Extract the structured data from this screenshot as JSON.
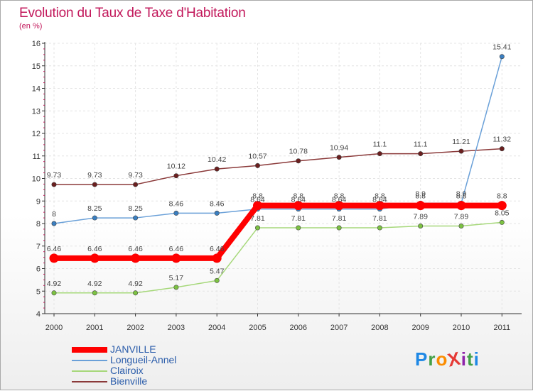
{
  "header": {
    "title": "Evolution du Taux de Taxe d'Habitation",
    "subtitle": "(en %)"
  },
  "logo": {
    "text": "ProXiti",
    "letters": [
      "P",
      "r",
      "o",
      "X",
      "i",
      "t",
      "i"
    ],
    "colors": [
      "#1e88e5",
      "#43a047",
      "#fb8c00",
      "#e53935",
      "#8e24aa",
      "#43a047",
      "#1e88e5"
    ]
  },
  "chart_data": {
    "type": "line",
    "title": "Evolution du Taux de Taxe d'Habitation",
    "ylabel": "(en %)",
    "xlabel": "",
    "x": [
      "2000",
      "2001",
      "2002",
      "2003",
      "2004",
      "2005",
      "2006",
      "2007",
      "2008",
      "2009",
      "2010",
      "2011"
    ],
    "ylim": [
      4,
      16
    ],
    "yticks": [
      4,
      5,
      6,
      7,
      8,
      9,
      10,
      11,
      12,
      13,
      14,
      15,
      16
    ],
    "grid": true,
    "legend": "bottom-left",
    "series": [
      {
        "name": "JANVILLE",
        "color": "#ff0000",
        "values": [
          6.46,
          6.46,
          6.46,
          6.46,
          6.46,
          8.8,
          8.8,
          8.8,
          8.8,
          8.8,
          8.8,
          8.8
        ],
        "labels": [
          "6.46",
          "6.46",
          "6.46",
          "6.46",
          "6.46",
          "8.8",
          "8.8",
          "8.8",
          "8.8",
          "8.8",
          "8.8",
          "8.8"
        ]
      },
      {
        "name": "Longueil-Annel",
        "color": "#6aa0d8",
        "marker": "#3a7fc1",
        "values": [
          8,
          8.25,
          8.25,
          8.46,
          8.46,
          8.64,
          8.64,
          8.64,
          8.64,
          8.9,
          8.9,
          15.41
        ],
        "labels": [
          "8",
          "8.25",
          "8.25",
          "8.46",
          "8.46",
          "8.64",
          "8.64",
          "8.64",
          "8.64",
          "8.9",
          "8.9",
          "15.41"
        ]
      },
      {
        "name": "Clairoix",
        "color": "#a6d87a",
        "marker": "#7cc242",
        "values": [
          4.92,
          4.92,
          4.92,
          5.17,
          5.47,
          7.81,
          7.81,
          7.81,
          7.81,
          7.89,
          7.89,
          8.05
        ],
        "labels": [
          "4.92",
          "4.92",
          "4.92",
          "5.17",
          "5.47",
          "7.81",
          "7.81",
          "7.81",
          "7.81",
          "7.89",
          "7.89",
          "8.05"
        ]
      },
      {
        "name": "Bienville",
        "color": "#8b3a3a",
        "marker": "#6b1f1f",
        "values": [
          9.73,
          9.73,
          9.73,
          10.12,
          10.42,
          10.57,
          10.78,
          10.94,
          11.1,
          11.1,
          11.21,
          11.32
        ],
        "labels": [
          "9.73",
          "9.73",
          "9.73",
          "10.12",
          "10.42",
          "10.57",
          "10.78",
          "10.94",
          "11.1",
          "11.1",
          "11.21",
          "11.32"
        ]
      }
    ]
  }
}
